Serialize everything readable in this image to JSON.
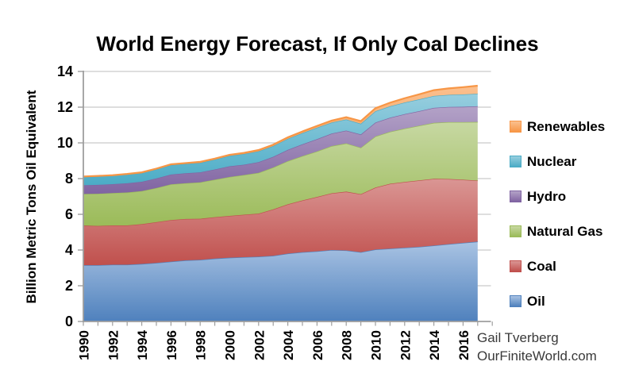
{
  "title": "World Energy Forecast, If Only Coal Declines",
  "y_axis_label": "Billion Metric Tons Oil Equivalent",
  "credit": {
    "line1": "Gail Tverberg",
    "line2": "OurFiniteWorld.com"
  },
  "chart_data": {
    "type": "area",
    "stacked": true,
    "title": "World Energy Forecast, If Only Coal Declines",
    "xlabel": "",
    "ylabel": "Billion Metric Tons Oil Equivalent",
    "ylim": [
      0,
      14
    ],
    "y_ticks": [
      0,
      2,
      4,
      6,
      8,
      10,
      12,
      14
    ],
    "x": [
      1990,
      1991,
      1992,
      1993,
      1994,
      1995,
      1996,
      1997,
      1998,
      1999,
      2000,
      2001,
      2002,
      2003,
      2004,
      2005,
      2006,
      2007,
      2008,
      2009,
      2010,
      2011,
      2012,
      2013,
      2014,
      2015,
      2016,
      2017
    ],
    "x_tick_labels": [
      "1990",
      "1992",
      "1994",
      "1996",
      "1998",
      "2000",
      "2002",
      "2004",
      "2006",
      "2008",
      "2010",
      "2012",
      "2014",
      "2016"
    ],
    "grid": true,
    "legend_position": "right",
    "legend_order": [
      "Renewables",
      "Nuclear",
      "Hydro",
      "Natural Gas",
      "Coal",
      "Oil"
    ],
    "series": [
      {
        "name": "Oil",
        "color": "#4F81BD",
        "color_light": "#A9C3E3",
        "values": [
          3.15,
          3.15,
          3.18,
          3.18,
          3.22,
          3.28,
          3.35,
          3.42,
          3.45,
          3.52,
          3.57,
          3.6,
          3.63,
          3.68,
          3.8,
          3.88,
          3.93,
          4.0,
          3.98,
          3.88,
          4.03,
          4.08,
          4.13,
          4.18,
          4.25,
          4.33,
          4.4,
          4.47
        ]
      },
      {
        "name": "Coal",
        "color": "#C0504D",
        "color_light": "#DA9694",
        "values": [
          2.22,
          2.2,
          2.2,
          2.2,
          2.23,
          2.28,
          2.33,
          2.32,
          2.3,
          2.32,
          2.34,
          2.38,
          2.41,
          2.6,
          2.76,
          2.9,
          3.04,
          3.18,
          3.29,
          3.25,
          3.47,
          3.63,
          3.68,
          3.72,
          3.74,
          3.65,
          3.54,
          3.42
        ]
      },
      {
        "name": "Natural Gas",
        "color": "#9BBB59",
        "color_light": "#C7D8A2",
        "values": [
          1.77,
          1.8,
          1.81,
          1.84,
          1.85,
          1.91,
          2.0,
          2.0,
          2.04,
          2.1,
          2.18,
          2.22,
          2.28,
          2.34,
          2.42,
          2.48,
          2.55,
          2.64,
          2.7,
          2.6,
          2.86,
          2.91,
          2.99,
          3.06,
          3.13,
          3.18,
          3.22,
          3.28
        ]
      },
      {
        "name": "Hydro",
        "color": "#8064A2",
        "color_light": "#B3A2C7",
        "values": [
          0.49,
          0.5,
          0.5,
          0.52,
          0.52,
          0.54,
          0.55,
          0.56,
          0.56,
          0.57,
          0.6,
          0.58,
          0.6,
          0.6,
          0.63,
          0.66,
          0.69,
          0.7,
          0.72,
          0.74,
          0.78,
          0.79,
          0.81,
          0.82,
          0.84,
          0.85,
          0.86,
          0.88
        ]
      },
      {
        "name": "Nuclear",
        "color": "#4BACC6",
        "color_light": "#97CEDF",
        "values": [
          0.45,
          0.46,
          0.46,
          0.48,
          0.48,
          0.5,
          0.52,
          0.52,
          0.53,
          0.55,
          0.58,
          0.6,
          0.61,
          0.6,
          0.62,
          0.63,
          0.64,
          0.62,
          0.62,
          0.6,
          0.63,
          0.64,
          0.65,
          0.66,
          0.67,
          0.68,
          0.69,
          0.7
        ]
      },
      {
        "name": "Renewables",
        "color": "#F79646",
        "color_light": "#FBC08F",
        "values": [
          0.04,
          0.04,
          0.04,
          0.04,
          0.05,
          0.05,
          0.05,
          0.05,
          0.06,
          0.06,
          0.06,
          0.06,
          0.07,
          0.08,
          0.08,
          0.09,
          0.1,
          0.11,
          0.13,
          0.15,
          0.17,
          0.2,
          0.24,
          0.28,
          0.32,
          0.36,
          0.41,
          0.45
        ]
      }
    ],
    "style": {
      "grid_color": "#C9C9C9",
      "axis_color": "#9E9E9E",
      "title_color": "#000000",
      "credit_color": "#3a3a3a"
    }
  }
}
